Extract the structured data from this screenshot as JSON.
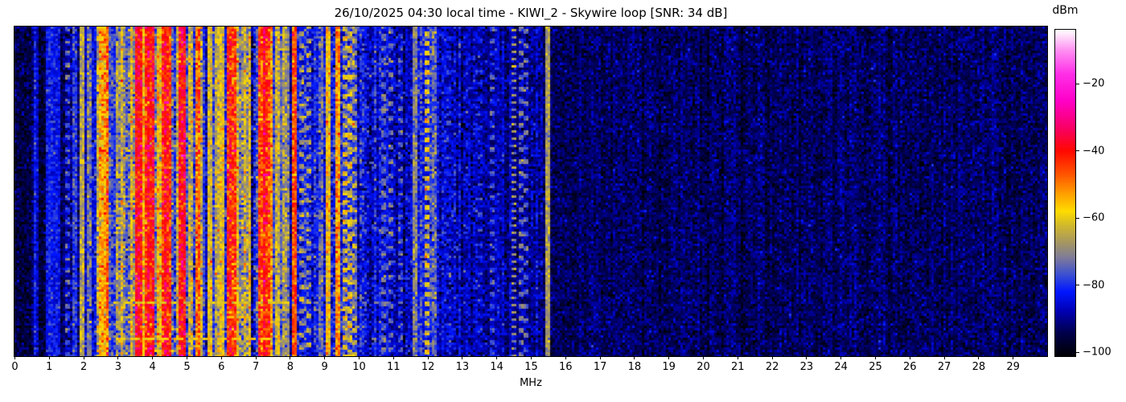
{
  "chart_data": {
    "type": "heatmap",
    "subtype": "hf-spectrogram-waterfall",
    "title": "26/10/2025 04:30 local time - KIWI_2 - Skywire loop [SNR: 34 dB]",
    "xlabel": "MHz",
    "colorbar_label": "dBm",
    "x_range": [
      0,
      30
    ],
    "x_ticks": [
      0,
      1,
      2,
      3,
      4,
      5,
      6,
      7,
      8,
      9,
      10,
      11,
      12,
      13,
      14,
      15,
      16,
      17,
      18,
      19,
      20,
      21,
      22,
      23,
      24,
      25,
      26,
      27,
      28,
      29
    ],
    "colorbar": {
      "top_dbm": -4,
      "bottom_dbm": -101.3,
      "ticks": [
        -20,
        -40,
        -60,
        -80,
        -100
      ]
    },
    "colormap_stops": [
      [
        -101.5,
        "#000000"
      ],
      [
        -94,
        "#00004e"
      ],
      [
        -88,
        "#0000b0"
      ],
      [
        -82,
        "#0016ff"
      ],
      [
        -77,
        "#3a4fd4"
      ],
      [
        -72,
        "#7d7a9b"
      ],
      [
        -67,
        "#a8995f"
      ],
      [
        -62,
        "#d2ba2a"
      ],
      [
        -58,
        "#ffdc00"
      ],
      [
        -53,
        "#ffa200"
      ],
      [
        -47,
        "#ff5500"
      ],
      [
        -40,
        "#ff0800"
      ],
      [
        -33,
        "#f80067"
      ],
      [
        -25,
        "#ff00c8"
      ],
      [
        -17,
        "#ff30e8"
      ],
      [
        -10,
        "#ff90f2"
      ],
      [
        -4,
        "#ffffff"
      ]
    ],
    "bands": [
      {
        "f0": 0.0,
        "f1": 1.5,
        "base": -95,
        "colVar": 1.5,
        "rowVar": 3.5
      },
      {
        "f0": 1.5,
        "f1": 2.1,
        "base": -89,
        "colVar": 3.5,
        "rowVar": 4.5
      },
      {
        "f0": 2.1,
        "f1": 2.35,
        "base": -79,
        "colVar": 3.5,
        "rowVar": 5
      },
      {
        "f0": 2.35,
        "f1": 2.7,
        "base": -61,
        "colVar": 7,
        "rowVar": 6,
        "hot": 0.25,
        "hotBoost": 6,
        "cold": 0.15,
        "coldDrop": 16
      },
      {
        "f0": 2.7,
        "f1": 2.95,
        "base": -77,
        "colVar": 4,
        "rowVar": 5
      },
      {
        "f0": 2.95,
        "f1": 3.3,
        "base": -61,
        "colVar": 7,
        "rowVar": 6,
        "hot": 0.3,
        "hotBoost": 7,
        "cold": 0.12,
        "coldDrop": 16
      },
      {
        "f0": 3.3,
        "f1": 3.5,
        "base": -69,
        "colVar": 8,
        "rowVar": 6
      },
      {
        "f0": 3.5,
        "f1": 5.05,
        "base": -54,
        "colVar": 8,
        "rowVar": 6,
        "hot": 0.35,
        "hotBoost": 12,
        "cold": 0.16,
        "coldDrop": 20
      },
      {
        "f0": 5.05,
        "f1": 5.5,
        "base": -64,
        "colVar": 7,
        "rowVar": 6,
        "hot": 0.15,
        "hotBoost": 10,
        "cold": 0.15,
        "coldDrop": 14
      },
      {
        "f0": 5.5,
        "f1": 6.15,
        "base": -76,
        "colVar": 6,
        "rowVar": 5
      },
      {
        "f0": 6.15,
        "f1": 6.7,
        "base": -58,
        "colVar": 8,
        "rowVar": 6,
        "hot": 0.35,
        "hotBoost": 12,
        "cold": 0.12,
        "coldDrop": 18
      },
      {
        "f0": 6.7,
        "f1": 7.05,
        "base": -67,
        "colVar": 8,
        "rowVar": 6
      },
      {
        "f0": 7.05,
        "f1": 7.5,
        "base": -52,
        "colVar": 7,
        "rowVar": 6,
        "hot": 0.45,
        "hotBoost": 10,
        "cold": 0.1,
        "coldDrop": 22
      },
      {
        "f0": 7.5,
        "f1": 8.1,
        "base": -77,
        "colVar": 6,
        "rowVar": 5
      },
      {
        "f0": 8.1,
        "f1": 9.05,
        "base": -82,
        "colVar": 4,
        "rowVar": 5
      },
      {
        "f0": 9.05,
        "f1": 9.95,
        "base": -78,
        "colVar": 6,
        "rowVar": 5.5
      },
      {
        "f0": 9.95,
        "f1": 10.45,
        "base": -83,
        "colVar": 3.5,
        "rowVar": 5
      },
      {
        "f0": 10.45,
        "f1": 11.55,
        "base": -87,
        "colVar": 3,
        "rowVar": 4.5
      },
      {
        "f0": 11.55,
        "f1": 12.25,
        "base": -80,
        "colVar": 4.5,
        "rowVar": 5
      },
      {
        "f0": 12.25,
        "f1": 13.4,
        "base": -87,
        "colVar": 2.8,
        "rowVar": 4.5
      },
      {
        "f0": 13.4,
        "f1": 15.55,
        "base": -89,
        "colVar": 2.2,
        "rowVar": 4
      },
      {
        "f0": 15.55,
        "f1": 30.0,
        "base": -93,
        "colVar": 1.3,
        "rowVar": 3.5
      }
    ],
    "carrier_lines": [
      {
        "f": 0.62,
        "level": -85
      },
      {
        "f": 0.97,
        "level": -80
      },
      {
        "f": 1.12,
        "level": -84
      },
      {
        "f": 1.28,
        "level": -86
      },
      {
        "f": 1.54,
        "level": -76,
        "dash": [
          2,
          3
        ]
      },
      {
        "f": 1.78,
        "level": -78
      },
      {
        "f": 1.99,
        "level": -64
      },
      {
        "f": 2.17,
        "level": -74
      },
      {
        "f": 2.5,
        "level": -57
      },
      {
        "f": 3.6,
        "level": -42,
        "w": 0.1
      },
      {
        "f": 3.95,
        "level": -40,
        "w": 0.12
      },
      {
        "f": 4.45,
        "level": -42,
        "w": 0.1
      },
      {
        "f": 4.85,
        "level": -44,
        "w": 0.1
      },
      {
        "f": 5.3,
        "level": -48
      },
      {
        "f": 5.66,
        "level": -62
      },
      {
        "f": 6.0,
        "level": -60
      },
      {
        "f": 6.25,
        "level": -44,
        "w": 0.09
      },
      {
        "f": 7.2,
        "level": -44,
        "w": 0.1
      },
      {
        "f": 7.38,
        "level": -46,
        "w": 0.08
      },
      {
        "f": 7.66,
        "level": -62
      },
      {
        "f": 7.82,
        "level": -68
      },
      {
        "f": 8.16,
        "level": -44
      },
      {
        "f": 8.36,
        "level": -66,
        "dash": [
          2,
          3
        ]
      },
      {
        "f": 8.56,
        "level": -68,
        "dash": [
          2,
          4
        ]
      },
      {
        "f": 9.1,
        "level": -58
      },
      {
        "f": 9.36,
        "level": -52
      },
      {
        "f": 9.6,
        "level": -62,
        "dash": [
          2,
          2
        ]
      },
      {
        "f": 9.76,
        "level": -64,
        "dash": [
          3,
          3
        ]
      },
      {
        "f": 9.9,
        "level": -66,
        "dash": [
          2,
          3
        ]
      },
      {
        "f": 10.7,
        "level": -77,
        "dash": [
          3,
          2
        ]
      },
      {
        "f": 10.95,
        "level": -72,
        "dash": [
          2,
          4
        ]
      },
      {
        "f": 11.2,
        "level": -75,
        "dash": [
          2,
          3
        ]
      },
      {
        "f": 11.65,
        "level": -72
      },
      {
        "f": 12.02,
        "level": -62,
        "dash": [
          2,
          2
        ]
      },
      {
        "f": 12.17,
        "level": -74
      },
      {
        "f": 12.6,
        "level": -80,
        "dash": [
          2,
          5
        ]
      },
      {
        "f": 13.55,
        "level": -80,
        "dash": [
          2,
          4
        ]
      },
      {
        "f": 13.85,
        "level": -78,
        "dash": [
          2,
          3
        ]
      },
      {
        "f": 14.5,
        "level": -68,
        "dash": [
          1,
          2
        ]
      },
      {
        "f": 14.72,
        "level": -74,
        "dash": [
          2,
          3
        ]
      },
      {
        "f": 14.88,
        "level": -74,
        "dash": [
          2,
          4
        ]
      },
      {
        "f": 15.5,
        "level": -66
      }
    ],
    "time_streaks": [
      {
        "yfrac": 0.835,
        "f0": 2.9,
        "f1": 8.1,
        "level": -62,
        "dash": [
          3,
          2
        ]
      },
      {
        "yfrac": 0.835,
        "f0": 8.1,
        "f1": 11.4,
        "level": -72,
        "dash": [
          2,
          3
        ]
      },
      {
        "yfrac": 0.945,
        "f0": 2.8,
        "f1": 7.5,
        "level": -58,
        "dash": [
          4,
          2
        ]
      },
      {
        "yfrac": 0.945,
        "f0": 10.3,
        "f1": 10.9,
        "level": -68,
        "dash": [
          2,
          2
        ]
      }
    ]
  }
}
